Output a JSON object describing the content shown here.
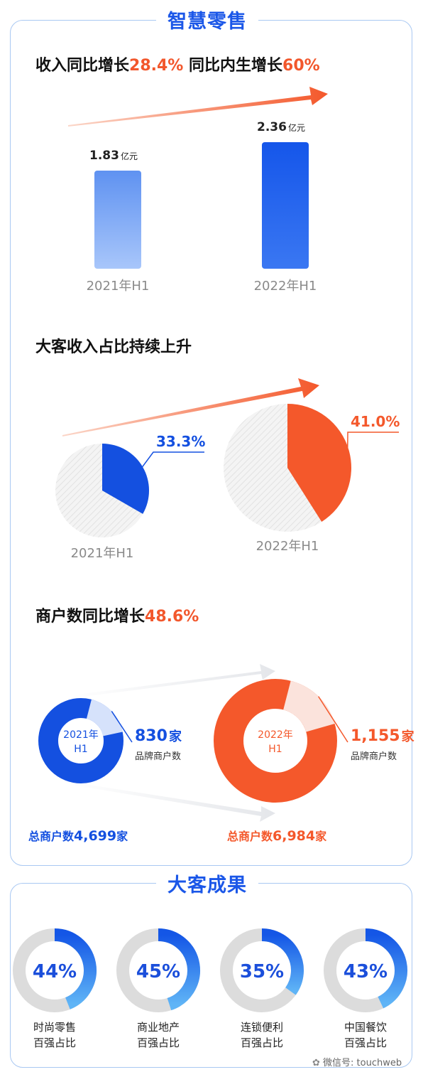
{
  "section1": {
    "title": "智慧零售",
    "revenue": {
      "heading_prefix": "收入同比增长",
      "heading_growth": "28.4%",
      "heading_mid": " 同比内生增长",
      "heading_organic": "60%"
    },
    "client_share": {
      "heading": "大客收入占比持续上升"
    },
    "merchants": {
      "heading_prefix": "商户数同比增长",
      "heading_growth": "48.6%"
    }
  },
  "section2": {
    "title": "大客成果"
  },
  "chart_data": [
    {
      "type": "bar",
      "categories": [
        "2021年H1",
        "2022年H1"
      ],
      "values": [
        1.83,
        2.36
      ],
      "value_labels": [
        "1.83",
        "2.36"
      ],
      "unit": "亿元",
      "ylim": [
        0,
        2.5
      ],
      "colors": [
        "#6d9ef3",
        "#1257ea"
      ]
    },
    {
      "type": "pie",
      "pies": [
        {
          "label": "2021年H1",
          "value": 33.3,
          "value_label": "33.3%",
          "color": "#1450e0"
        },
        {
          "label": "2022年H1",
          "value": 41.0,
          "value_label": "41.0%",
          "color": "#f4582b"
        }
      ]
    },
    {
      "type": "pie",
      "donuts": [
        {
          "center_line1": "2021年",
          "center_line2": "H1",
          "brand_count": "830",
          "brand_unit": "家",
          "brand_label": "品牌商户数",
          "total_prefix": "总商户数",
          "total": "4,699",
          "total_unit": "家",
          "brand_share": 0.1766,
          "color": "#1450e0",
          "light": "#d6e2fb"
        },
        {
          "center_line1": "2022年",
          "center_line2": "H1",
          "brand_count": "1,155",
          "brand_unit": "家",
          "brand_label": "品牌商户数",
          "total_prefix": "总商户数",
          "total": "6,984",
          "total_unit": "家",
          "brand_share": 0.1654,
          "color": "#f4582b",
          "light": "#fbe3dc"
        }
      ]
    },
    {
      "type": "pie",
      "rings": [
        {
          "value": 44,
          "value_label": "44%",
          "line1": "时尚零售",
          "line2": "百强占比"
        },
        {
          "value": 45,
          "value_label": "45%",
          "line1": "商业地产",
          "line2": "百强占比"
        },
        {
          "value": 35,
          "value_label": "35%",
          "line1": "连锁便利",
          "line2": "百强占比"
        },
        {
          "value": 43,
          "value_label": "43%",
          "line1": "中国餐饮",
          "line2": "百强占比"
        }
      ]
    }
  ],
  "watermark": "微信号: touchweb"
}
